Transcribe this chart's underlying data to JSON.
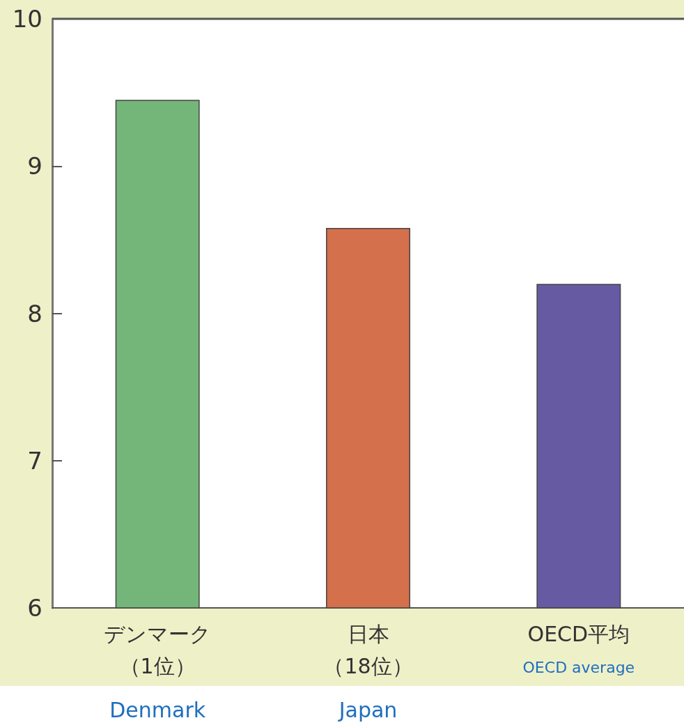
{
  "chart_data": {
    "type": "bar",
    "categories": [
      "デンマーク（1位）",
      "日本（18位）",
      "OECD平均"
    ],
    "values": [
      9.45,
      8.58,
      8.2
    ],
    "colors": [
      "#74b57a",
      "#d4704c",
      "#665ba3"
    ],
    "ylim": [
      6,
      10
    ],
    "yticks": [
      6,
      7,
      8,
      9,
      10
    ],
    "grid": false,
    "annotations": [
      "Denmark",
      "Japan",
      "OECD average"
    ]
  }
}
